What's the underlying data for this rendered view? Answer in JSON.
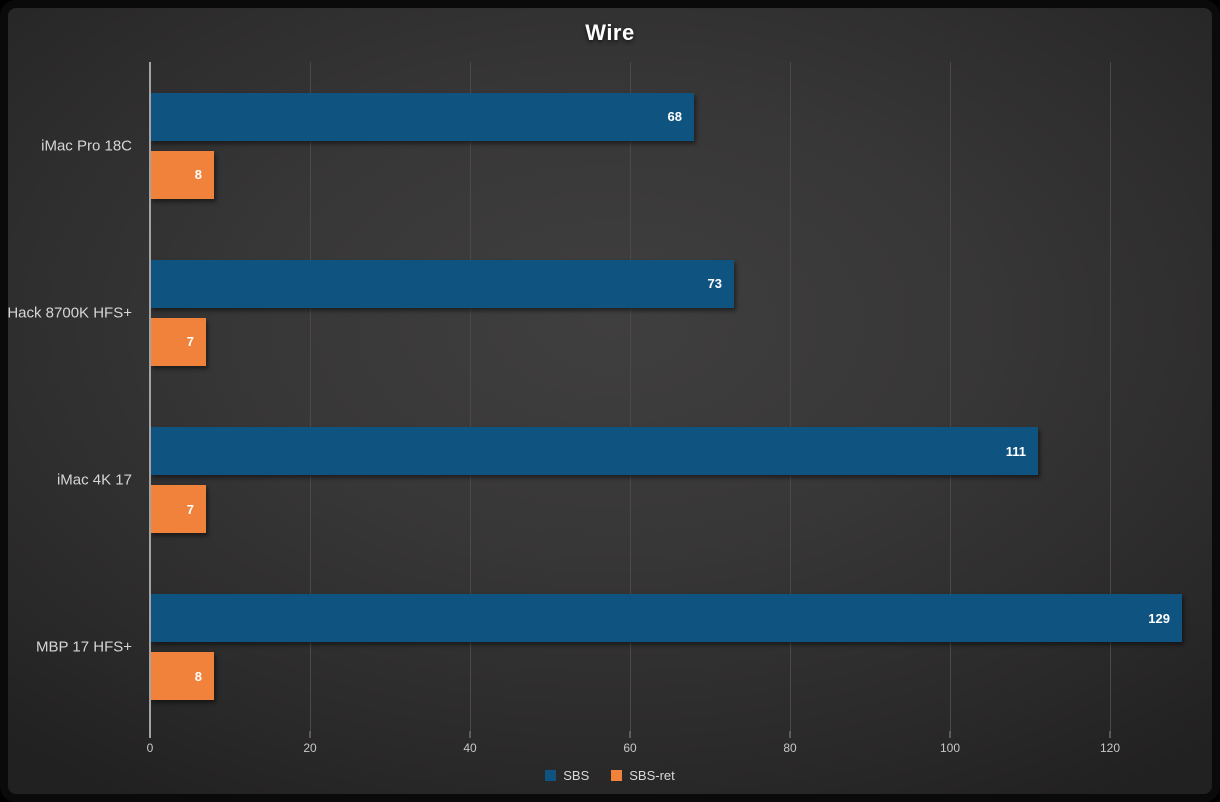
{
  "chart_data": {
    "type": "bar",
    "orientation": "horizontal",
    "title": "Wire",
    "categories": [
      "iMac Pro 18C",
      "Hack 8700K HFS+",
      "iMac 4K 17",
      "MBP 17 HFS+"
    ],
    "series": [
      {
        "name": "SBS",
        "color": "#0F5480",
        "values": [
          68,
          73,
          111,
          129
        ]
      },
      {
        "name": "SBS-ret",
        "color": "#F0823C",
        "values": [
          8,
          7,
          7,
          8
        ]
      }
    ],
    "xticks": [
      0,
      20,
      40,
      60,
      80,
      100,
      120
    ],
    "xlim": [
      0,
      130
    ],
    "xlabel": "",
    "ylabel": "",
    "grid": "vertical-gridlines-on",
    "legend_position": "bottom-center",
    "value_labels": "inside-end",
    "value_label_color": "#ffffff"
  }
}
